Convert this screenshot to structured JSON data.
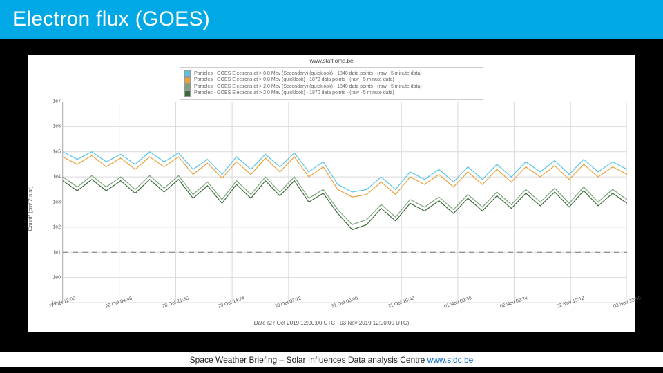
{
  "title": "Electron flux (GOES)",
  "source_text": "www.staff.oma.be",
  "footer_text": "Space Weather Briefing – Solar Influences Data analysis Centre ",
  "footer_link": "www.sidc.be",
  "chart": {
    "type": "line",
    "ylabel": "Count/ (cm^2 s sr)",
    "xlabel": "Date (27 Oct 2019 12:00:00 UTC - 03 Nov 2019 12:00:00 UTC)",
    "yscale": "log",
    "ylim_exp": [
      -1,
      7
    ],
    "ytick_exp": [
      -1,
      0,
      1,
      2,
      3,
      4,
      5,
      6,
      7
    ],
    "xticks": [
      "27 Oct 12:00",
      "28 Oct 04:48",
      "28 Oct 21:36",
      "29 Oct 14:24",
      "30 Oct 07:12",
      "31 Oct 00:00",
      "31 Oct 16:48",
      "01 Nov 09:36",
      "02 Nov 02:24",
      "02 Nov 19:12",
      "03 Nov 12:00"
    ],
    "threshold_exp": [
      3,
      1
    ],
    "threshold_color": "#777777",
    "grid_color": "#d9d9d9",
    "background_color": "#ffffff",
    "axis_color": "#bbbbbb",
    "tick_fontsize": 7,
    "label_fontsize": 8,
    "legend": [
      {
        "color": "#57c4e5",
        "label": "Particles - GOES Electrons at > 0.8 Mev (Secondary) (quicklook) - 1840 data points - (raw - 5 minute data)"
      },
      {
        "color": "#e9a13b",
        "label": "Particles - GOES Electrons at > 0.8 Mev (quicklook) - 1870 data points - (raw - 5 minute data)"
      },
      {
        "color": "#7aa37a",
        "label": "Particles - GOES Electrons at > 2.0 Mev (Secondary) (quicklook) - 1840 data points - (raw - 5 minute data)"
      },
      {
        "color": "#3a6b3a",
        "label": "Particles - GOES Electrons at > 2.0 Mev (quicklook) - 1870 data points - (raw - 5 minute data)"
      }
    ],
    "series": [
      {
        "color": "#57c4e5",
        "width": 1.2,
        "data_exp": [
          5.0,
          4.7,
          5.0,
          4.6,
          4.9,
          4.5,
          5.0,
          4.6,
          4.95,
          4.3,
          4.7,
          4.1,
          4.8,
          4.3,
          4.9,
          4.4,
          4.95,
          4.2,
          4.6,
          3.7,
          3.4,
          3.5,
          4.0,
          3.5,
          4.2,
          3.9,
          4.3,
          3.8,
          4.4,
          3.9,
          4.5,
          4.0,
          4.6,
          4.2,
          4.65,
          4.1,
          4.7,
          4.2,
          4.6,
          4.3
        ]
      },
      {
        "color": "#e9a13b",
        "width": 1.2,
        "data_exp": [
          4.8,
          4.5,
          4.85,
          4.4,
          4.75,
          4.3,
          4.8,
          4.4,
          4.8,
          4.1,
          4.55,
          3.95,
          4.6,
          4.1,
          4.75,
          4.2,
          4.8,
          4.0,
          4.4,
          3.5,
          3.2,
          3.3,
          3.8,
          3.3,
          4.0,
          3.7,
          4.1,
          3.6,
          4.2,
          3.7,
          4.3,
          3.8,
          4.4,
          4.0,
          4.45,
          3.9,
          4.5,
          4.0,
          4.4,
          4.1
        ]
      },
      {
        "color": "#7aa37a",
        "width": 1.2,
        "data_exp": [
          4.0,
          3.6,
          4.05,
          3.6,
          4.0,
          3.5,
          4.05,
          3.55,
          4.05,
          3.3,
          3.8,
          3.1,
          3.85,
          3.3,
          4.0,
          3.4,
          4.0,
          3.15,
          3.5,
          2.7,
          2.1,
          2.3,
          2.9,
          2.4,
          3.1,
          2.8,
          3.2,
          2.7,
          3.3,
          2.8,
          3.4,
          2.9,
          3.5,
          3.0,
          3.55,
          2.95,
          3.6,
          3.0,
          3.5,
          3.1
        ]
      },
      {
        "color": "#3a6b3a",
        "width": 1.2,
        "data_exp": [
          3.85,
          3.45,
          3.9,
          3.45,
          3.85,
          3.35,
          3.9,
          3.4,
          3.9,
          3.15,
          3.65,
          2.95,
          3.7,
          3.15,
          3.85,
          3.25,
          3.85,
          3.0,
          3.35,
          2.55,
          1.9,
          2.1,
          2.75,
          2.25,
          2.95,
          2.65,
          3.05,
          2.55,
          3.15,
          2.65,
          3.25,
          2.75,
          3.35,
          2.85,
          3.4,
          2.8,
          3.45,
          2.85,
          3.35,
          2.95
        ]
      }
    ]
  }
}
